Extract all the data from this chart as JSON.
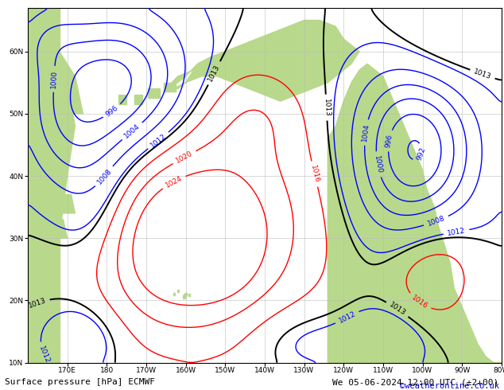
{
  "title_bottom": "Surface pressure [hPa] ECMWF",
  "datetime_str": "We 05-06-2024 12:00 UTC (±2+00)",
  "copyright": "©weatheronline.co.uk",
  "background_land": "#b8d98b",
  "background_ocean": "#ffffff",
  "contour_color_blue": "#0000ff",
  "contour_color_red": "#ff0000",
  "contour_color_black": "#000000",
  "grid_color": "#bbbbbb",
  "bottom_text_color": "#000000",
  "copyright_color": "#0000cc",
  "figsize": [
    6.34,
    4.9
  ],
  "dpi": 100,
  "font_size_bottom": 8,
  "font_size_copyright": 7.5
}
